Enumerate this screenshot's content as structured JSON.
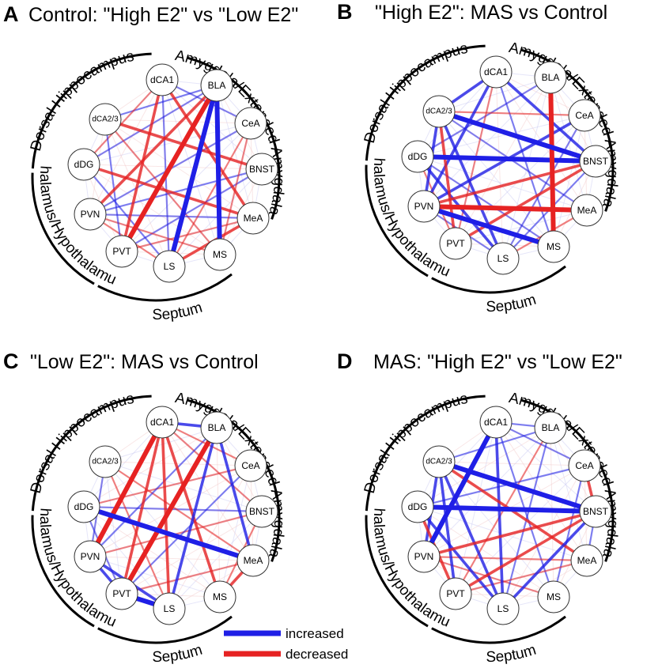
{
  "colors": {
    "increased": "#1f1fe6",
    "decreased": "#e62222"
  },
  "legend": {
    "increased": "increased",
    "decreased": "decreased"
  },
  "regions": [
    "dCA1",
    "BLA",
    "CeA",
    "BNST",
    "MeA",
    "MS",
    "LS",
    "PVT",
    "PVN",
    "dDG",
    "dCA2/3"
  ],
  "groups": {
    "hippocampus": "Dorsal Hippocampus",
    "amygdala": "Amygdala/Extended Amygdala",
    "septum": "Septum",
    "thalamus": "Thalamus/Hypothalamus"
  },
  "panels": [
    {
      "letter": "A",
      "title": "Control: \"High E2\" vs \"Low E2\"",
      "edges": [
        [
          "BLA",
          "LS",
          "increased",
          3
        ],
        [
          "BLA",
          "MS",
          "increased",
          3
        ],
        [
          "BLA",
          "PVT",
          "decreased",
          3
        ],
        [
          "dCA1",
          "MeA",
          "decreased",
          2
        ],
        [
          "dCA1",
          "PVT",
          "decreased",
          2
        ],
        [
          "BLA",
          "PVN",
          "decreased",
          2
        ],
        [
          "dCA2/3",
          "BNST",
          "decreased",
          2
        ],
        [
          "dDG",
          "BLA",
          "increased",
          1
        ],
        [
          "dDG",
          "MeA",
          "decreased",
          2
        ],
        [
          "PVN",
          "BNST",
          "increased",
          1
        ],
        [
          "PVT",
          "MeA",
          "decreased",
          1
        ],
        [
          "LS",
          "MeA",
          "decreased",
          2
        ],
        [
          "dCA1",
          "LS",
          "increased",
          1
        ],
        [
          "CeA",
          "PVN",
          "increased",
          1
        ],
        [
          "dCA2/3",
          "MS",
          "decreased",
          1
        ],
        [
          "PVN",
          "MeA",
          "increased",
          1
        ],
        [
          "dDG",
          "LS",
          "increased",
          1
        ],
        [
          "BLA",
          "dCA2/3",
          "increased",
          1
        ],
        [
          "CeA",
          "LS",
          "decreased",
          1
        ],
        [
          "PVT",
          "BNST",
          "increased",
          1
        ],
        [
          "MS",
          "CeA",
          "decreased",
          1
        ],
        [
          "dDG",
          "dCA1",
          "decreased",
          1
        ],
        [
          "PVN",
          "LS",
          "decreased",
          1
        ],
        [
          "dCA1",
          "CeA",
          "increased",
          1
        ],
        [
          "PVN",
          "MS",
          "decreased",
          1
        ],
        [
          "dCA2/3",
          "PVT",
          "increased",
          1
        ]
      ]
    },
    {
      "letter": "B",
      "title": "\"High E2\": MAS vs Control",
      "edges": [
        [
          "dDG",
          "BNST",
          "increased",
          3
        ],
        [
          "BLA",
          "MS",
          "decreased",
          3
        ],
        [
          "PVN",
          "MeA",
          "decreased",
          3
        ],
        [
          "dCA2/3",
          "BNST",
          "increased",
          3
        ],
        [
          "PVN",
          "MS",
          "increased",
          3
        ],
        [
          "dCA2/3",
          "PVN",
          "increased",
          2
        ],
        [
          "dCA1",
          "dCA2/3",
          "increased",
          2
        ],
        [
          "PVT",
          "BNST",
          "decreased",
          2
        ],
        [
          "dCA2/3",
          "LS",
          "increased",
          2
        ],
        [
          "dCA1",
          "PVN",
          "increased",
          2
        ],
        [
          "dDG",
          "LS",
          "increased",
          2
        ],
        [
          "dCA1",
          "BNST",
          "increased",
          2
        ],
        [
          "CeA",
          "PVN",
          "increased",
          2
        ],
        [
          "dCA2/3",
          "PVT",
          "decreased",
          2
        ],
        [
          "PVN",
          "BNST",
          "decreased",
          2
        ],
        [
          "dDG",
          "MS",
          "increased",
          1
        ],
        [
          "CeA",
          "LS",
          "increased",
          1
        ],
        [
          "dCA1",
          "MS",
          "increased",
          1
        ],
        [
          "BLA",
          "dDG",
          "increased",
          1
        ],
        [
          "PVN",
          "LS",
          "increased",
          1
        ],
        [
          "MeA",
          "dCA2/3",
          "increased",
          1
        ],
        [
          "PVT",
          "dCA1",
          "decreased",
          1
        ],
        [
          "BNST",
          "LS",
          "increased",
          1
        ],
        [
          "dDG",
          "PVT",
          "decreased",
          1
        ],
        [
          "MeA",
          "LS",
          "decreased",
          1
        ],
        [
          "dCA2/3",
          "CeA",
          "decreased",
          1
        ]
      ]
    },
    {
      "letter": "C",
      "title": "\"Low E2\": MAS vs Control",
      "edges": [
        [
          "dCA1",
          "PVN",
          "decreased",
          3
        ],
        [
          "BLA",
          "PVT",
          "decreased",
          3
        ],
        [
          "dDG",
          "MeA",
          "increased",
          3
        ],
        [
          "PVT",
          "LS",
          "increased",
          3
        ],
        [
          "dCA1",
          "BLA",
          "increased",
          2
        ],
        [
          "dCA1",
          "PVT",
          "decreased",
          2
        ],
        [
          "dCA1",
          "LS",
          "decreased",
          2
        ],
        [
          "dCA1",
          "MS",
          "decreased",
          2
        ],
        [
          "BLA",
          "LS",
          "increased",
          2
        ],
        [
          "PVN",
          "LS",
          "increased",
          2
        ],
        [
          "PVN",
          "PVT",
          "increased",
          2
        ],
        [
          "MeA",
          "MS",
          "decreased",
          2
        ],
        [
          "BLA",
          "MeA",
          "increased",
          2
        ],
        [
          "dDG",
          "BNST",
          "increased",
          1
        ],
        [
          "dCA2/3",
          "MeA",
          "decreased",
          1
        ],
        [
          "dCA1",
          "BNST",
          "decreased",
          1
        ],
        [
          "PVN",
          "BNST",
          "decreased",
          1
        ],
        [
          "dDG",
          "PVT",
          "increased",
          1
        ],
        [
          "dCA2/3",
          "PVN",
          "increased",
          1
        ],
        [
          "CeA",
          "PVT",
          "increased",
          1
        ],
        [
          "dDG",
          "CeA",
          "decreased",
          1
        ],
        [
          "dCA2/3",
          "LS",
          "decreased",
          1
        ],
        [
          "MeA",
          "PVT",
          "decreased",
          1
        ],
        [
          "BLA",
          "PVN",
          "increased",
          1
        ],
        [
          "dCA1",
          "CeA",
          "decreased",
          1
        ],
        [
          "BNST",
          "MS",
          "decreased",
          1
        ]
      ]
    },
    {
      "letter": "D",
      "title": "MAS: \"High E2\" vs \"Low E2\"",
      "edges": [
        [
          "dCA2/3",
          "BNST",
          "increased",
          3
        ],
        [
          "dDG",
          "BNST",
          "increased",
          3
        ],
        [
          "dCA1",
          "PVN",
          "increased",
          3
        ],
        [
          "dCA2/3",
          "PVT",
          "increased",
          2
        ],
        [
          "dDG",
          "LS",
          "increased",
          2
        ],
        [
          "dCA2/3",
          "LS",
          "increased",
          2
        ],
        [
          "dCA1",
          "LS",
          "increased",
          2
        ],
        [
          "PVN",
          "BNST",
          "decreased",
          2
        ],
        [
          "dCA2/3",
          "MeA",
          "decreased",
          2
        ],
        [
          "PVT",
          "BNST",
          "decreased",
          2
        ],
        [
          "BNST",
          "LS",
          "increased",
          2
        ],
        [
          "dCA2/3",
          "PVN",
          "increased",
          2
        ],
        [
          "dDG",
          "PVT",
          "decreased",
          2
        ],
        [
          "dCA1",
          "MS",
          "increased",
          1
        ],
        [
          "BLA",
          "PVT",
          "decreased",
          1
        ],
        [
          "dCA1",
          "CeA",
          "increased",
          1
        ],
        [
          "BNST",
          "MeA",
          "increased",
          1
        ],
        [
          "CeA",
          "MS",
          "increased",
          1
        ],
        [
          "BLA",
          "dCA2/3",
          "increased",
          1
        ],
        [
          "MeA",
          "PVN",
          "decreased",
          1
        ],
        [
          "CeA",
          "BNST",
          "decreased",
          2
        ],
        [
          "dDG",
          "CeA",
          "increased",
          1
        ],
        [
          "MS",
          "PVN",
          "decreased",
          1
        ],
        [
          "BLA",
          "LS",
          "increased",
          1
        ],
        [
          "dCA1",
          "BLA",
          "increased",
          1
        ],
        [
          "PVT",
          "MeA",
          "decreased",
          1
        ]
      ]
    }
  ]
}
